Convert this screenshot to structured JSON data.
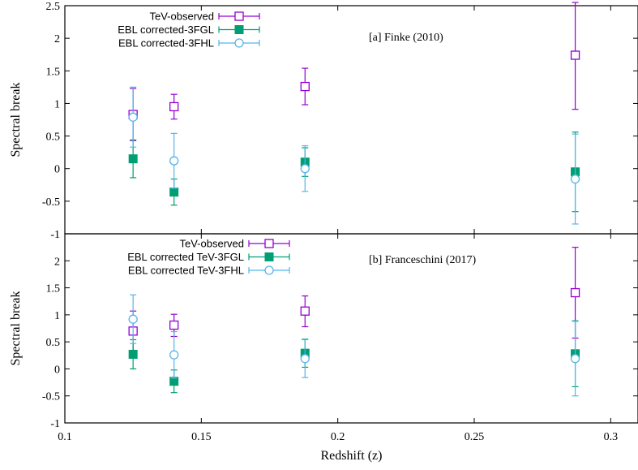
{
  "chart_data": [
    {
      "type": "scatter",
      "annotation": "[a] Finke (2010)",
      "ylabel": "Spectral break",
      "xlabel": "",
      "xlim": [
        0.1,
        0.31
      ],
      "ylim": [
        -1,
        2.5
      ],
      "yticks": [
        "-1",
        "-0.5",
        "0",
        "0.5",
        "1",
        "1.5",
        "2",
        "2.5"
      ],
      "ytick_values": [
        -1,
        -0.5,
        0,
        0.5,
        1,
        1.5,
        2,
        2.5
      ],
      "legend_position": "top-left",
      "series": [
        {
          "name": "TeV-observed",
          "color": "#9400d3",
          "marker": "open-square",
          "points": [
            {
              "x": 0.125,
              "y": 0.83,
              "lo": 0.43,
              "hi": 1.23
            },
            {
              "x": 0.14,
              "y": 0.95,
              "lo": 0.76,
              "hi": 1.14
            },
            {
              "x": 0.188,
              "y": 1.26,
              "lo": 0.98,
              "hi": 1.54
            },
            {
              "x": 0.287,
              "y": 1.74,
              "lo": 0.91,
              "hi": 2.55
            }
          ]
        },
        {
          "name": "EBL corrected-3FGL",
          "color": "#009e73",
          "marker": "filled-square",
          "points": [
            {
              "x": 0.125,
              "y": 0.15,
              "lo": -0.14,
              "hi": 0.44
            },
            {
              "x": 0.14,
              "y": -0.36,
              "lo": -0.56,
              "hi": -0.16
            },
            {
              "x": 0.188,
              "y": 0.1,
              "lo": -0.12,
              "hi": 0.32
            },
            {
              "x": 0.287,
              "y": -0.05,
              "lo": -0.66,
              "hi": 0.56
            }
          ]
        },
        {
          "name": "EBL corrected-3FHL",
          "color": "#56b4e9",
          "marker": "open-circle",
          "points": [
            {
              "x": 0.125,
              "y": 0.79,
              "lo": 0.33,
              "hi": 1.25
            },
            {
              "x": 0.14,
              "y": 0.12,
              "lo": -0.3,
              "hi": 0.54
            },
            {
              "x": 0.188,
              "y": 0.0,
              "lo": -0.35,
              "hi": 0.35
            },
            {
              "x": 0.287,
              "y": -0.16,
              "lo": -0.85,
              "hi": 0.53
            }
          ]
        }
      ]
    },
    {
      "type": "scatter",
      "annotation": "[b] Franceschini (2017)",
      "ylabel": "Spectral break",
      "xlabel": "Redshift (z)",
      "xlim": [
        0.1,
        0.31
      ],
      "ylim": [
        -1,
        2.5
      ],
      "xticks": [
        "0.1",
        "0.15",
        "0.2",
        "0.25",
        "0.3"
      ],
      "xtick_values": [
        0.1,
        0.15,
        0.2,
        0.25,
        0.3
      ],
      "yticks": [
        "-1",
        "-0.5",
        "0",
        "0.5",
        "1",
        "1.5",
        "2"
      ],
      "ytick_values": [
        -1,
        -0.5,
        0,
        0.5,
        1,
        1.5,
        2
      ],
      "legend_position": "top-left",
      "series": [
        {
          "name": "TeV-observed",
          "color": "#9400d3",
          "marker": "open-square",
          "points": [
            {
              "x": 0.125,
              "y": 0.7,
              "lo": 0.33,
              "hi": 1.07
            },
            {
              "x": 0.14,
              "y": 0.81,
              "lo": 0.6,
              "hi": 1.01
            },
            {
              "x": 0.188,
              "y": 1.07,
              "lo": 0.78,
              "hi": 1.35
            },
            {
              "x": 0.287,
              "y": 1.41,
              "lo": 0.57,
              "hi": 2.25
            }
          ]
        },
        {
          "name": "EBL corrected TeV-3FGL",
          "color": "#009e73",
          "marker": "filled-square",
          "points": [
            {
              "x": 0.125,
              "y": 0.27,
              "lo": 0.0,
              "hi": 0.54
            },
            {
              "x": 0.14,
              "y": -0.23,
              "lo": -0.44,
              "hi": -0.02
            },
            {
              "x": 0.188,
              "y": 0.29,
              "lo": 0.03,
              "hi": 0.55
            },
            {
              "x": 0.287,
              "y": 0.28,
              "lo": -0.33,
              "hi": 0.89
            }
          ]
        },
        {
          "name": "EBL corrected TeV-3FHL",
          "color": "#56b4e9",
          "marker": "open-circle",
          "points": [
            {
              "x": 0.125,
              "y": 0.92,
              "lo": 0.47,
              "hi": 1.37
            },
            {
              "x": 0.14,
              "y": 0.26,
              "lo": -0.17,
              "hi": 0.69
            },
            {
              "x": 0.188,
              "y": 0.19,
              "lo": -0.16,
              "hi": 0.54
            },
            {
              "x": 0.287,
              "y": 0.19,
              "lo": -0.5,
              "hi": 0.88
            }
          ]
        }
      ]
    }
  ]
}
